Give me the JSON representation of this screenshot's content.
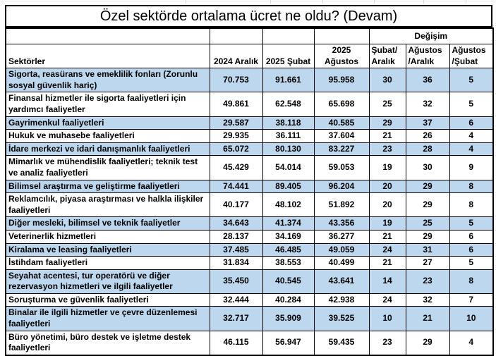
{
  "title": "Özel sektörde ortalama ücret ne oldu? (Devam)",
  "colors": {
    "row_highlight": "#BDD7EE",
    "border": "#000000",
    "text": "#000000"
  },
  "table": {
    "group_header": "Değişim",
    "headers": {
      "sector": "Sektörler",
      "periods": [
        "2024 Aralık",
        "2025 Şubat",
        "2025 Ağustos"
      ],
      "changes": [
        "Şubat/\nAralık",
        "Ağustos\n/Aralık",
        "Ağustos\n/Şubat"
      ]
    },
    "rows": [
      {
        "sector": "Sigorta, reasürans ve emeklilik fonları (Zorunlu sosyal güvenlik hariç)",
        "values": [
          "70.753",
          "91.661",
          "95.958",
          "30",
          "36",
          "5"
        ],
        "highlight": true
      },
      {
        "sector": "Finansal hizmetler ile sigorta faaliyetleri için yardımcı faaliyetler",
        "values": [
          "49.861",
          "62.548",
          "65.698",
          "25",
          "32",
          "5"
        ],
        "highlight": false
      },
      {
        "sector": "Gayrimenkul faaliyetleri",
        "values": [
          "29.587",
          "38.118",
          "40.585",
          "29",
          "37",
          "6"
        ],
        "highlight": true
      },
      {
        "sector": "Hukuk ve muhasebe faaliyetleri",
        "values": [
          "29.935",
          "36.111",
          "37.604",
          "21",
          "26",
          "4"
        ],
        "highlight": false
      },
      {
        "sector": "İdare merkezi ve idari danışmanlık faaliyetleri",
        "values": [
          "65.072",
          "80.130",
          "83.227",
          "23",
          "28",
          "4"
        ],
        "highlight": true
      },
      {
        "sector": "Mimarlık ve mühendislik faaliyetleri; teknik test ve analiz faaliyetleri",
        "values": [
          "45.429",
          "54.014",
          "59.053",
          "19",
          "30",
          "9"
        ],
        "highlight": false
      },
      {
        "sector": "Bilimsel araştırma ve geliştirme faaliyetleri",
        "values": [
          "74.441",
          "89.405",
          "96.204",
          "20",
          "29",
          "8"
        ],
        "highlight": true
      },
      {
        "sector": "Reklamcılık, piyasa araştırması ve halkla ilişkiler faaliyetleri",
        "values": [
          "40.177",
          "48.102",
          "51.892",
          "20",
          "29",
          "8"
        ],
        "highlight": false
      },
      {
        "sector": "Diğer mesleki, bilimsel ve teknik faaliyetler",
        "values": [
          "34.643",
          "41.374",
          "43.356",
          "19",
          "25",
          "5"
        ],
        "highlight": true
      },
      {
        "sector": "Veterinerlik hizmetleri",
        "values": [
          "28.137",
          "34.169",
          "36.277",
          "21",
          "29",
          "6"
        ],
        "highlight": false
      },
      {
        "sector": "Kiralama ve leasing faaliyetleri",
        "values": [
          "37.485",
          "46.485",
          "49.059",
          "24",
          "31",
          "6"
        ],
        "highlight": true
      },
      {
        "sector": "İstihdam faaliyetleri",
        "values": [
          "31.834",
          "38.553",
          "40.499",
          "21",
          "27",
          "5"
        ],
        "highlight": false
      },
      {
        "sector": "Seyahat acentesi, tur operatörü ve diğer rezervasyon hizmetleri ve ilgili faaliyetler",
        "values": [
          "35.450",
          "40.545",
          "43.641",
          "14",
          "23",
          "8"
        ],
        "highlight": true
      },
      {
        "sector": "Soruşturma ve güvenlik faaliyetleri",
        "values": [
          "32.444",
          "40.284",
          "42.938",
          "24",
          "32",
          "7"
        ],
        "highlight": false
      },
      {
        "sector": "Binalar ile ilgili hizmetler ve çevre düzenlemesi faaliyetleri",
        "values": [
          "32.717",
          "35.909",
          "39.525",
          "10",
          "21",
          "10"
        ],
        "highlight": true
      },
      {
        "sector": "Büro yönetimi, büro destek ve işletme destek faaliyetleri",
        "values": [
          "46.115",
          "56.947",
          "59.435",
          "23",
          "29",
          "4"
        ],
        "highlight": false
      }
    ]
  }
}
